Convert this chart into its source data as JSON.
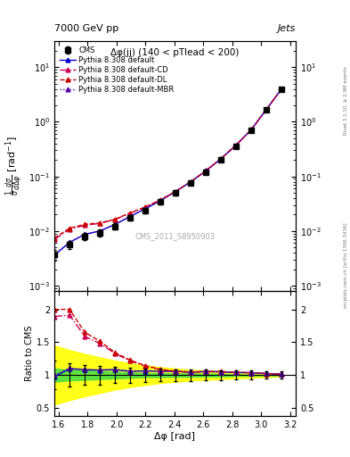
{
  "title_left": "7000 GeV pp",
  "title_right": "Jets",
  "plot_title": "Δφ(jj) (140 < pTlead < 200)",
  "watermark": "CMS_2011_S8950903",
  "right_label_top": "Rivet 3.1.10, ≥ 2.9M events",
  "right_label_bottom": "mcplots.cern.ch [arXiv:1306.3436]",
  "xlabel": "Δφ [rad]",
  "ylabel_main": "$\\frac{1}{\\sigma}\\frac{d\\sigma}{d\\Delta\\varphi}$ [rad$^{-1}$]",
  "ylabel_ratio": "Ratio to CMS",
  "cms_x": [
    1.676,
    1.781,
    1.885,
    1.99,
    2.094,
    2.199,
    2.303,
    2.408,
    2.513,
    2.618,
    2.722,
    2.827,
    2.932,
    3.037,
    3.141
  ],
  "cms_y": [
    0.00565,
    0.00805,
    0.0093,
    0.0122,
    0.0175,
    0.024,
    0.034,
    0.05,
    0.076,
    0.12,
    0.2,
    0.36,
    0.69,
    1.65,
    3.9
  ],
  "cms_yerr": [
    0.001,
    0.0012,
    0.0013,
    0.0015,
    0.002,
    0.0025,
    0.0033,
    0.0045,
    0.0065,
    0.0095,
    0.015,
    0.025,
    0.045,
    0.09,
    0.2
  ],
  "cms_x_low": [
    1.57
  ],
  "cms_y_low": [
    0.0037
  ],
  "cms_yerr_low": [
    0.0008
  ],
  "py_x": [
    1.57,
    1.676,
    1.781,
    1.885,
    1.99,
    2.094,
    2.199,
    2.303,
    2.408,
    2.513,
    2.618,
    2.722,
    2.827,
    2.932,
    3.037,
    3.141
  ],
  "py_def_y": [
    0.0036,
    0.0062,
    0.0087,
    0.01,
    0.0132,
    0.0185,
    0.0255,
    0.036,
    0.0528,
    0.0795,
    0.1265,
    0.21,
    0.374,
    0.715,
    1.69,
    3.96
  ],
  "py_CD_y": [
    0.007,
    0.0108,
    0.0128,
    0.0138,
    0.0162,
    0.0213,
    0.0273,
    0.0368,
    0.0528,
    0.0793,
    0.1263,
    0.21,
    0.374,
    0.715,
    1.686,
    3.96
  ],
  "py_DL_y": [
    0.0074,
    0.0113,
    0.0133,
    0.0141,
    0.0164,
    0.0215,
    0.0275,
    0.037,
    0.053,
    0.0795,
    0.1265,
    0.211,
    0.375,
    0.716,
    1.687,
    3.962
  ],
  "py_MBR_y": [
    0.0037,
    0.00625,
    0.00875,
    0.01005,
    0.0133,
    0.0186,
    0.0256,
    0.0361,
    0.0529,
    0.0796,
    0.1266,
    0.2101,
    0.3742,
    0.7152,
    1.691,
    3.961
  ],
  "yellow_band_x": [
    1.57,
    1.676,
    1.781,
    1.885,
    1.99,
    2.094,
    2.199,
    2.303,
    2.408,
    2.513,
    2.618,
    2.722,
    2.827,
    2.932,
    3.037,
    3.141
  ],
  "yellow_lo": [
    0.55,
    0.62,
    0.68,
    0.73,
    0.78,
    0.82,
    0.85,
    0.88,
    0.9,
    0.92,
    0.93,
    0.94,
    0.95,
    0.96,
    0.97,
    0.98
  ],
  "yellow_hi": [
    1.45,
    1.38,
    1.32,
    1.27,
    1.22,
    1.18,
    1.15,
    1.12,
    1.1,
    1.08,
    1.07,
    1.06,
    1.05,
    1.04,
    1.03,
    1.02
  ],
  "green_lo": [
    0.9,
    0.92,
    0.93,
    0.94,
    0.95,
    0.96,
    0.97,
    0.97,
    0.975,
    0.975,
    0.98,
    0.98,
    0.99,
    0.99,
    0.995,
    0.995
  ],
  "green_hi": [
    1.1,
    1.08,
    1.07,
    1.06,
    1.05,
    1.04,
    1.03,
    1.03,
    1.025,
    1.025,
    1.02,
    1.02,
    1.01,
    1.01,
    1.005,
    1.005
  ],
  "xlim": [
    1.57,
    3.24
  ],
  "ylim_main": [
    0.0008,
    30
  ],
  "ylim_ratio": [
    0.38,
    2.28
  ],
  "color_cms": "#000000",
  "color_default": "#0000cc",
  "color_CD": "#cc0055",
  "color_DL": "#cc0000",
  "color_MBR": "#5500aa"
}
